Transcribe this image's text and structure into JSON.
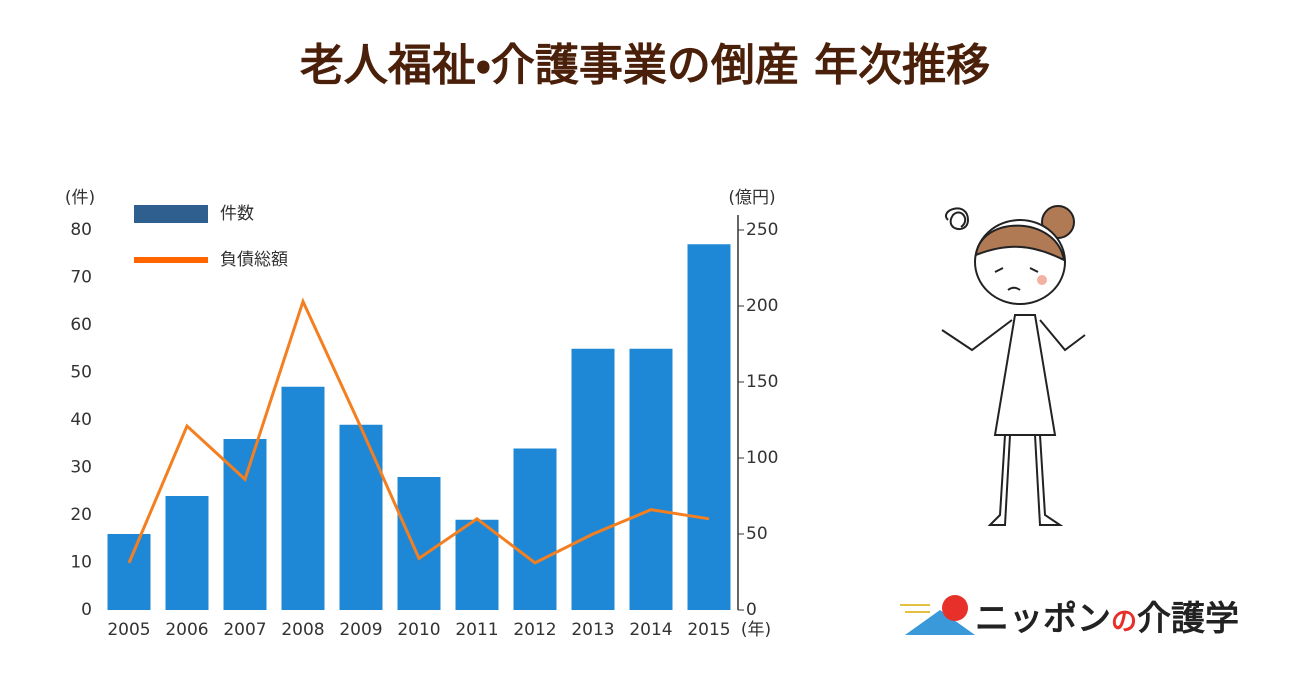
{
  "chart_data": {
    "type": "bar-line",
    "title": "老人福祉・介護事業の倒産 年次推移",
    "y_unit": "(件)",
    "y2_unit": "(億円)",
    "x_unit": "(年)",
    "categories": [
      "2005",
      "2006",
      "2007",
      "2008",
      "2009",
      "2010",
      "2011",
      "2012",
      "2013",
      "2014",
      "2015"
    ],
    "series": [
      {
        "name": "件数",
        "type": "bar",
        "color": "#1e88d6",
        "legend_color": "#2e5f8f",
        "values": [
          16,
          24,
          36,
          47,
          39,
          28,
          19,
          34,
          55,
          55,
          77
        ]
      },
      {
        "name": "負債総額",
        "type": "line",
        "axis": "y2",
        "color": "#f47f20",
        "legend_color": "#ff6600",
        "values": [
          31,
          121,
          86,
          203,
          120,
          34,
          60,
          31,
          50,
          66,
          60
        ]
      }
    ],
    "ylim": [
      0,
      80
    ],
    "yticks": [
      0,
      10,
      20,
      30,
      40,
      50,
      60,
      70,
      80
    ],
    "y2lim": [
      0,
      250
    ],
    "y2ticks": [
      0,
      50,
      100,
      150,
      200,
      250
    ],
    "grid": false
  },
  "logo": {
    "part1": "ニッポン",
    "part2": "の",
    "part3": "介護学"
  }
}
